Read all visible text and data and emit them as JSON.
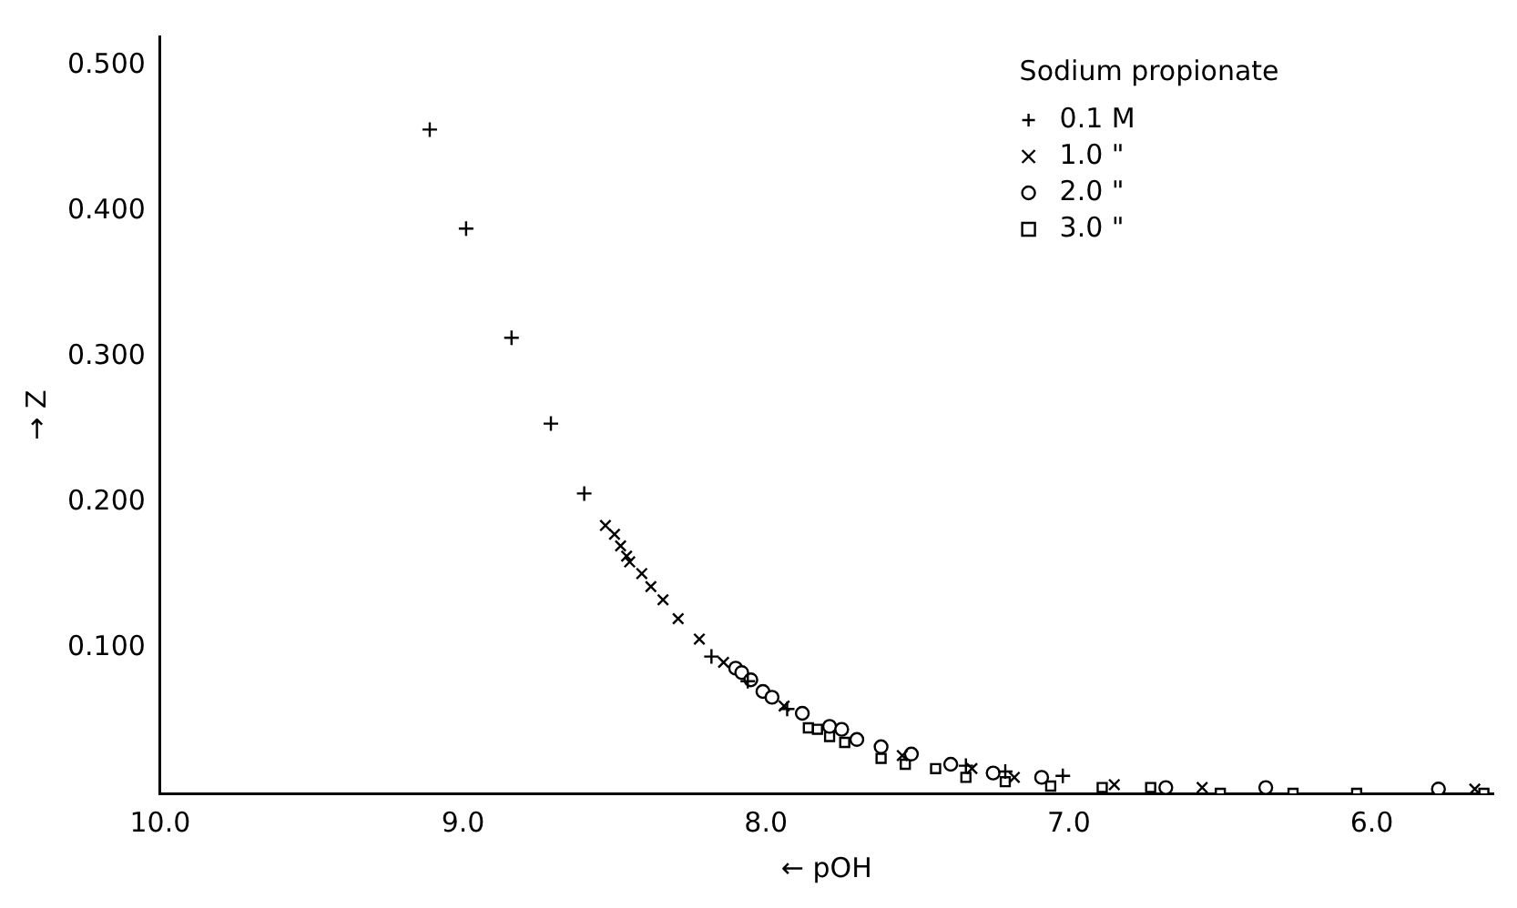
{
  "chart_data": {
    "type": "scatter",
    "xlabel": "← pOH",
    "ylabel": "→ Z",
    "legend_title": "Sodium propionate",
    "legend": "top right",
    "grid": false,
    "xlim": [
      10,
      5.6
    ],
    "xticks": [
      {
        "value": 10,
        "label": "10.0"
      },
      {
        "value": 9,
        "label": "9.0"
      },
      {
        "value": 8,
        "label": "8.0"
      },
      {
        "value": 7,
        "label": "7.0"
      },
      {
        "value": 6,
        "label": "6.0"
      }
    ],
    "ylim": [
      0,
      0.52
    ],
    "yticks": [
      {
        "value": 0.1,
        "label": "0.100"
      },
      {
        "value": 0.2,
        "label": "0.200"
      },
      {
        "value": 0.3,
        "label": "0.300"
      },
      {
        "value": 0.4,
        "label": "0.400"
      },
      {
        "value": 0.5,
        "label": "0.500"
      }
    ],
    "series": [
      {
        "name": "0.1 M",
        "color": "#000000",
        "marker": "plus",
        "x": [
          9.11,
          8.99,
          8.84,
          8.71,
          8.6,
          8.18,
          8.06,
          7.93,
          7.34,
          7.21,
          7.02
        ],
        "values": [
          0.456,
          0.388,
          0.313,
          0.254,
          0.206,
          0.094,
          0.077,
          0.058,
          0.019,
          0.015,
          0.012
        ]
      },
      {
        "name": "1.0 \"",
        "color": "#000000",
        "marker": "cross",
        "x": [
          8.53,
          8.5,
          8.48,
          8.46,
          8.45,
          8.41,
          8.38,
          8.34,
          8.29,
          8.22,
          8.14,
          7.94,
          7.55,
          7.32,
          7.18,
          6.85,
          6.56,
          5.66
        ],
        "values": [
          0.184,
          0.178,
          0.17,
          0.163,
          0.159,
          0.151,
          0.142,
          0.133,
          0.12,
          0.106,
          0.09,
          0.06,
          0.026,
          0.017,
          0.011,
          0.006,
          0.004,
          0.003
        ]
      },
      {
        "name": "2.0 \"",
        "color": "#000000",
        "marker": "circle",
        "x": [
          8.1,
          8.08,
          8.05,
          8.01,
          7.98,
          7.88,
          7.79,
          7.75,
          7.7,
          7.62,
          7.52,
          7.39,
          7.25,
          7.09,
          6.68,
          6.35,
          5.78
        ],
        "values": [
          0.086,
          0.083,
          0.078,
          0.07,
          0.066,
          0.055,
          0.046,
          0.044,
          0.037,
          0.032,
          0.027,
          0.02,
          0.014,
          0.011,
          0.004,
          0.004,
          0.003
        ]
      },
      {
        "name": "3.0 \"",
        "color": "#000000",
        "marker": "square",
        "x": [
          7.86,
          7.83,
          7.79,
          7.74,
          7.62,
          7.54,
          7.44,
          7.34,
          7.21,
          7.06,
          6.89,
          6.73,
          6.5,
          6.26,
          6.05,
          5.63
        ],
        "values": [
          0.045,
          0.044,
          0.039,
          0.035,
          0.024,
          0.02,
          0.017,
          0.011,
          0.008,
          0.005,
          0.004,
          0.004,
          0,
          0,
          0,
          0
        ]
      }
    ]
  }
}
